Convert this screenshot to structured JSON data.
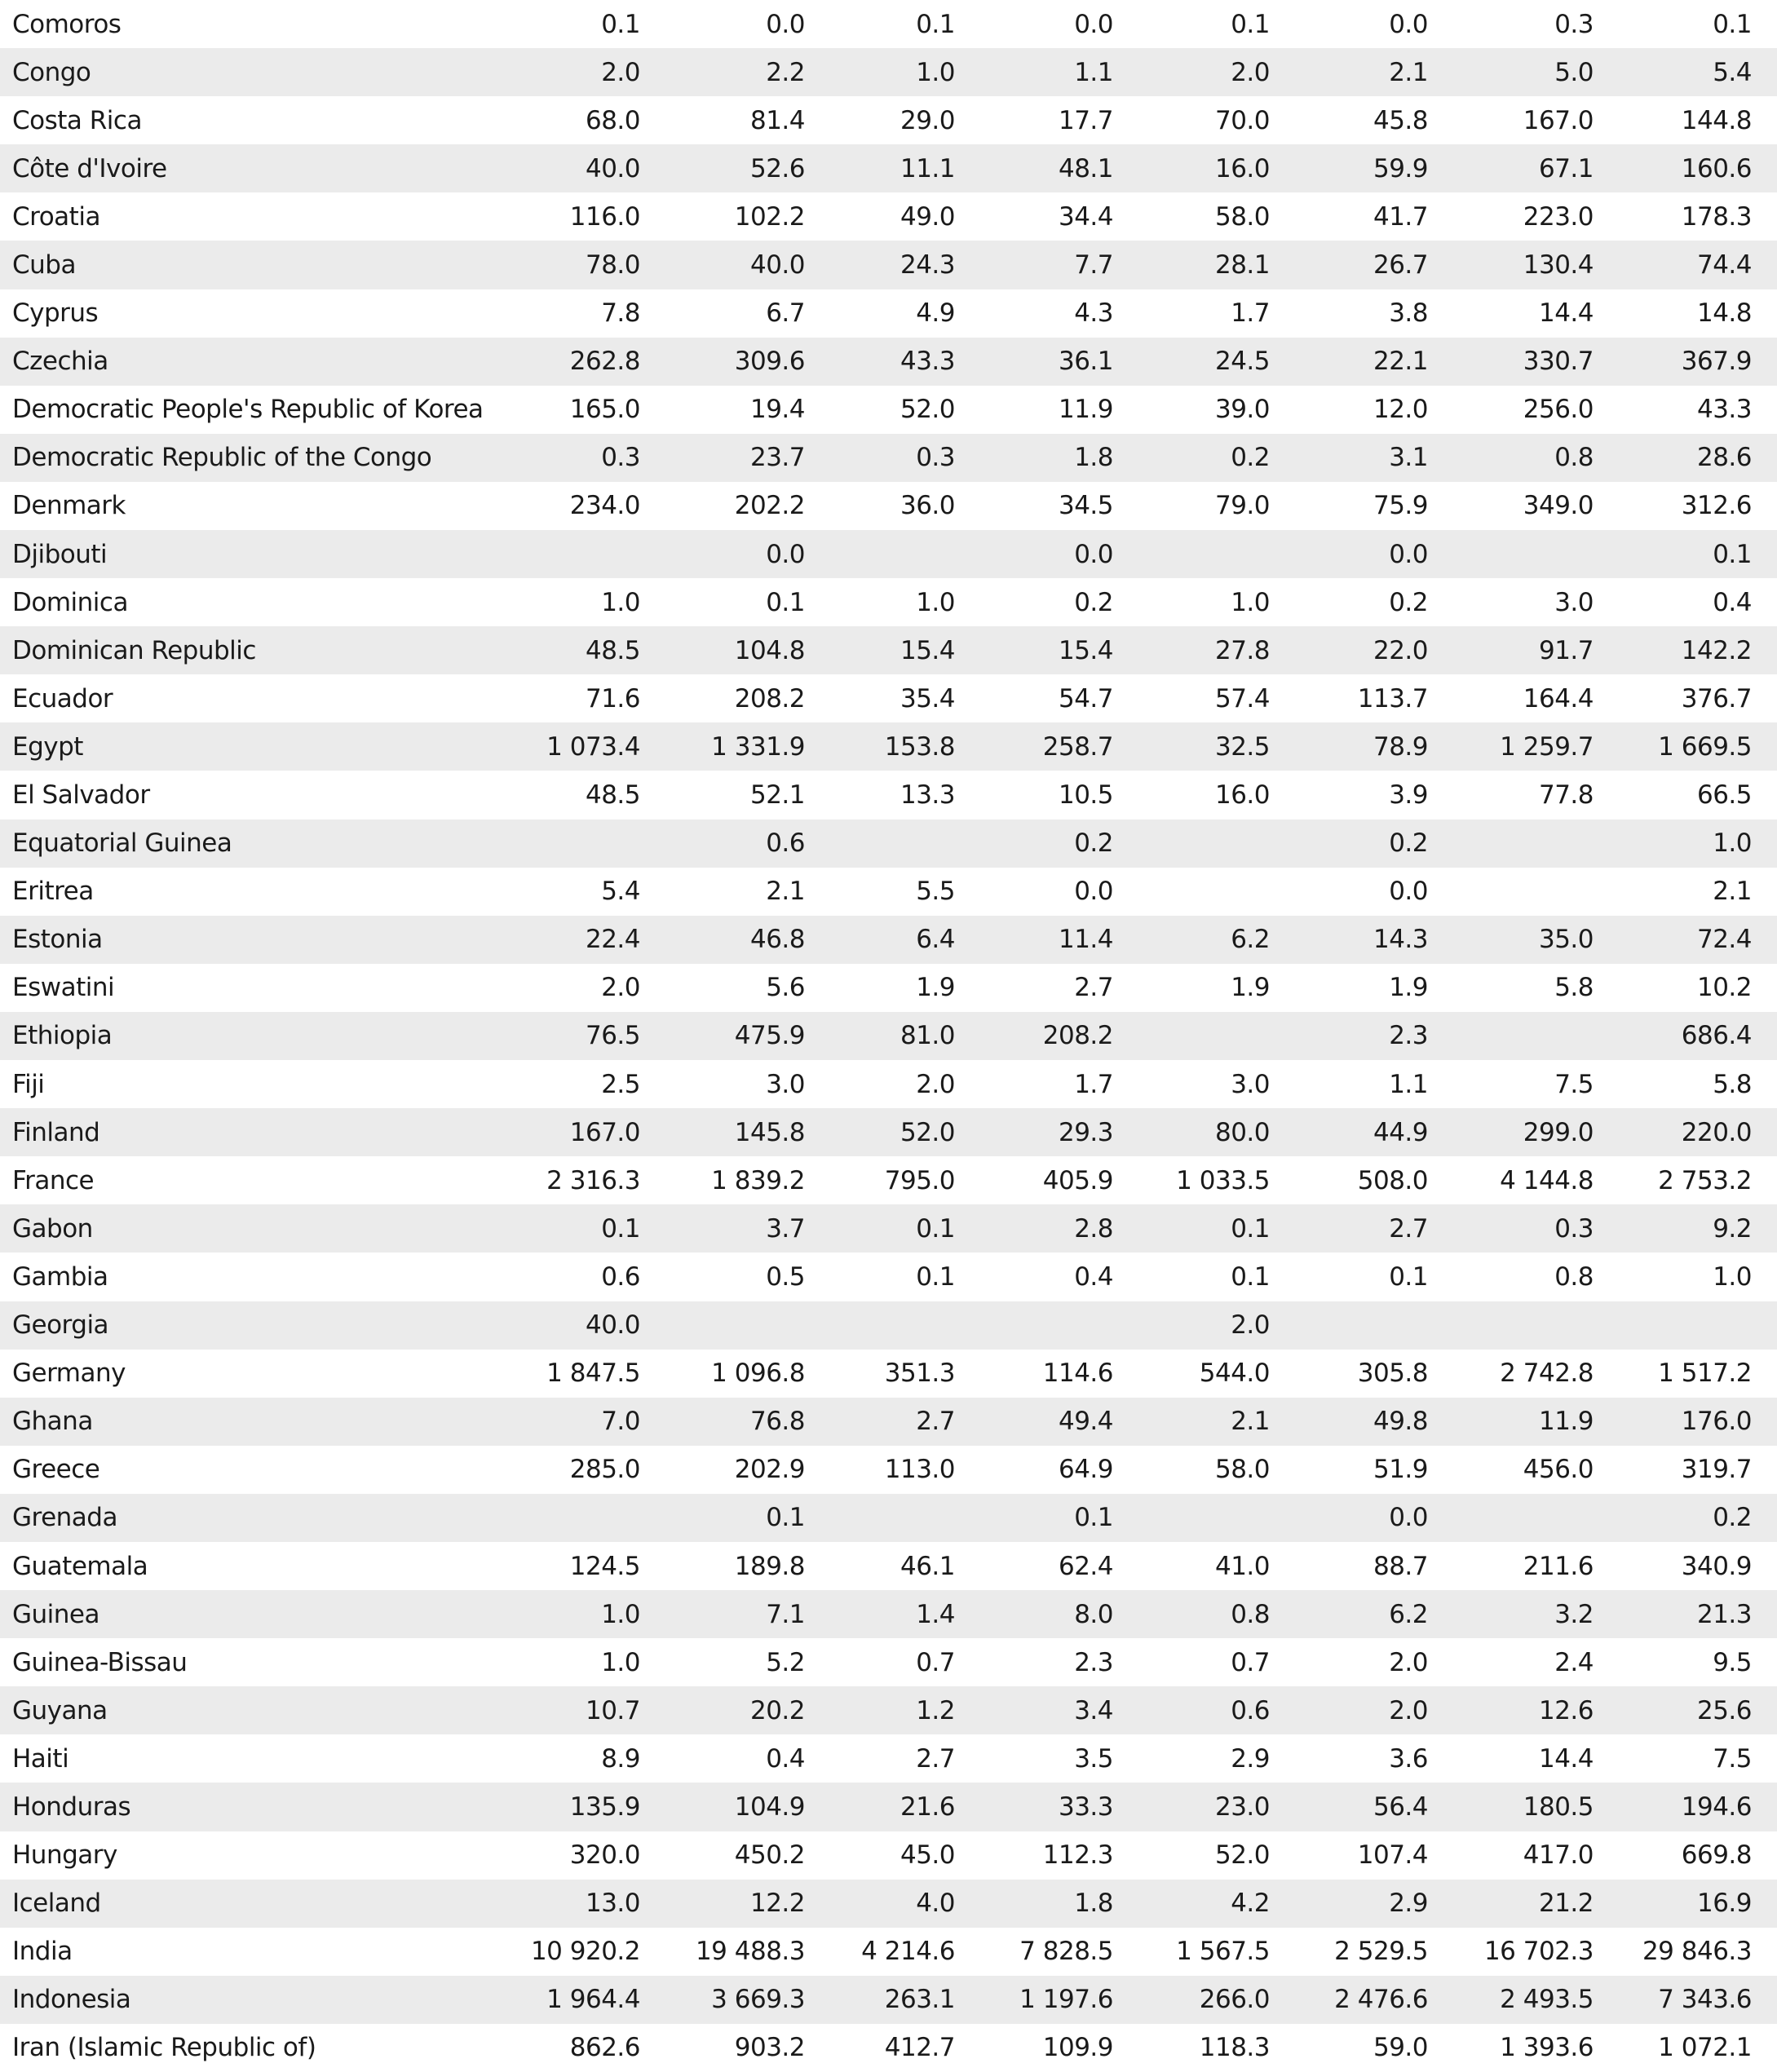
{
  "table": {
    "rows": [
      [
        "Comoros",
        "0.1",
        "0.0",
        "0.1",
        "0.0",
        "0.1",
        "0.0",
        "0.3",
        "0.1"
      ],
      [
        "Congo",
        "2.0",
        "2.2",
        "1.0",
        "1.1",
        "2.0",
        "2.1",
        "5.0",
        "5.4"
      ],
      [
        "Costa Rica",
        "68.0",
        "81.4",
        "29.0",
        "17.7",
        "70.0",
        "45.8",
        "167.0",
        "144.8"
      ],
      [
        "Côte d'Ivoire",
        "40.0",
        "52.6",
        "11.1",
        "48.1",
        "16.0",
        "59.9",
        "67.1",
        "160.6"
      ],
      [
        "Croatia",
        "116.0",
        "102.2",
        "49.0",
        "34.4",
        "58.0",
        "41.7",
        "223.0",
        "178.3"
      ],
      [
        "Cuba",
        "78.0",
        "40.0",
        "24.3",
        "7.7",
        "28.1",
        "26.7",
        "130.4",
        "74.4"
      ],
      [
        "Cyprus",
        "7.8",
        "6.7",
        "4.9",
        "4.3",
        "1.7",
        "3.8",
        "14.4",
        "14.8"
      ],
      [
        "Czechia",
        "262.8",
        "309.6",
        "43.3",
        "36.1",
        "24.5",
        "22.1",
        "330.7",
        "367.9"
      ],
      [
        "Democratic People's Republic of Korea",
        "165.0",
        "19.4",
        "52.0",
        "11.9",
        "39.0",
        "12.0",
        "256.0",
        "43.3"
      ],
      [
        "Democratic Republic of the Congo",
        "0.3",
        "23.7",
        "0.3",
        "1.8",
        "0.2",
        "3.1",
        "0.8",
        "28.6"
      ],
      [
        "Denmark",
        "234.0",
        "202.2",
        "36.0",
        "34.5",
        "79.0",
        "75.9",
        "349.0",
        "312.6"
      ],
      [
        "Djibouti",
        null,
        "0.0",
        null,
        "0.0",
        null,
        "0.0",
        null,
        "0.1"
      ],
      [
        "Dominica",
        "1.0",
        "0.1",
        "1.0",
        "0.2",
        "1.0",
        "0.2",
        "3.0",
        "0.4"
      ],
      [
        "Dominican Republic",
        "48.5",
        "104.8",
        "15.4",
        "15.4",
        "27.8",
        "22.0",
        "91.7",
        "142.2"
      ],
      [
        "Ecuador",
        "71.6",
        "208.2",
        "35.4",
        "54.7",
        "57.4",
        "113.7",
        "164.4",
        "376.7"
      ],
      [
        "Egypt",
        "1 073.4",
        "1 331.9",
        "153.8",
        "258.7",
        "32.5",
        "78.9",
        "1 259.7",
        "1 669.5"
      ],
      [
        "El Salvador",
        "48.5",
        "52.1",
        "13.3",
        "10.5",
        "16.0",
        "3.9",
        "77.8",
        "66.5"
      ],
      [
        "Equatorial Guinea",
        null,
        "0.6",
        null,
        "0.2",
        null,
        "0.2",
        null,
        "1.0"
      ],
      [
        "Eritrea",
        "5.4",
        "2.1",
        "5.5",
        "0.0",
        null,
        "0.0",
        null,
        "2.1"
      ],
      [
        "Estonia",
        "22.4",
        "46.8",
        "6.4",
        "11.4",
        "6.2",
        "14.3",
        "35.0",
        "72.4"
      ],
      [
        "Eswatini",
        "2.0",
        "5.6",
        "1.9",
        "2.7",
        "1.9",
        "1.9",
        "5.8",
        "10.2"
      ],
      [
        "Ethiopia",
        "76.5",
        "475.9",
        "81.0",
        "208.2",
        null,
        "2.3",
        null,
        "686.4"
      ],
      [
        "Fiji",
        "2.5",
        "3.0",
        "2.0",
        "1.7",
        "3.0",
        "1.1",
        "7.5",
        "5.8"
      ],
      [
        "Finland",
        "167.0",
        "145.8",
        "52.0",
        "29.3",
        "80.0",
        "44.9",
        "299.0",
        "220.0"
      ],
      [
        "France",
        "2 316.3",
        "1 839.2",
        "795.0",
        "405.9",
        "1 033.5",
        "508.0",
        "4 144.8",
        "2 753.2"
      ],
      [
        "Gabon",
        "0.1",
        "3.7",
        "0.1",
        "2.8",
        "0.1",
        "2.7",
        "0.3",
        "9.2"
      ],
      [
        "Gambia",
        "0.6",
        "0.5",
        "0.1",
        "0.4",
        "0.1",
        "0.1",
        "0.8",
        "1.0"
      ],
      [
        "Georgia",
        "40.0",
        null,
        null,
        null,
        "2.0",
        null,
        null,
        null
      ],
      [
        "Germany",
        "1 847.5",
        "1 096.8",
        "351.3",
        "114.6",
        "544.0",
        "305.8",
        "2 742.8",
        "1 517.2"
      ],
      [
        "Ghana",
        "7.0",
        "76.8",
        "2.7",
        "49.4",
        "2.1",
        "49.8",
        "11.9",
        "176.0"
      ],
      [
        "Greece",
        "285.0",
        "202.9",
        "113.0",
        "64.9",
        "58.0",
        "51.9",
        "456.0",
        "319.7"
      ],
      [
        "Grenada",
        null,
        "0.1",
        null,
        "0.1",
        null,
        "0.0",
        null,
        "0.2"
      ],
      [
        "Guatemala",
        "124.5",
        "189.8",
        "46.1",
        "62.4",
        "41.0",
        "88.7",
        "211.6",
        "340.9"
      ],
      [
        "Guinea",
        "1.0",
        "7.1",
        "1.4",
        "8.0",
        "0.8",
        "6.2",
        "3.2",
        "21.3"
      ],
      [
        "Guinea-Bissau",
        "1.0",
        "5.2",
        "0.7",
        "2.3",
        "0.7",
        "2.0",
        "2.4",
        "9.5"
      ],
      [
        "Guyana",
        "10.7",
        "20.2",
        "1.2",
        "3.4",
        "0.6",
        "2.0",
        "12.6",
        "25.6"
      ],
      [
        "Haiti",
        "8.9",
        "0.4",
        "2.7",
        "3.5",
        "2.9",
        "3.6",
        "14.4",
        "7.5"
      ],
      [
        "Honduras",
        "135.9",
        "104.9",
        "21.6",
        "33.3",
        "23.0",
        "56.4",
        "180.5",
        "194.6"
      ],
      [
        "Hungary",
        "320.0",
        "450.2",
        "45.0",
        "112.3",
        "52.0",
        "107.4",
        "417.0",
        "669.8"
      ],
      [
        "Iceland",
        "13.0",
        "12.2",
        "4.0",
        "1.8",
        "4.2",
        "2.9",
        "21.2",
        "16.9"
      ],
      [
        "India",
        "10 920.2",
        "19 488.3",
        "4 214.6",
        "7 828.5",
        "1 567.5",
        "2 529.5",
        "16 702.3",
        "29 846.3"
      ],
      [
        "Indonesia",
        "1 964.4",
        "3 669.3",
        "263.1",
        "1 197.6",
        "266.0",
        "2 476.6",
        "2 493.5",
        "7 343.6"
      ],
      [
        "Iran (Islamic Republic of)",
        "862.6",
        "903.2",
        "412.7",
        "109.9",
        "118.3",
        "59.0",
        "1 393.6",
        "1 072.1"
      ]
    ]
  }
}
